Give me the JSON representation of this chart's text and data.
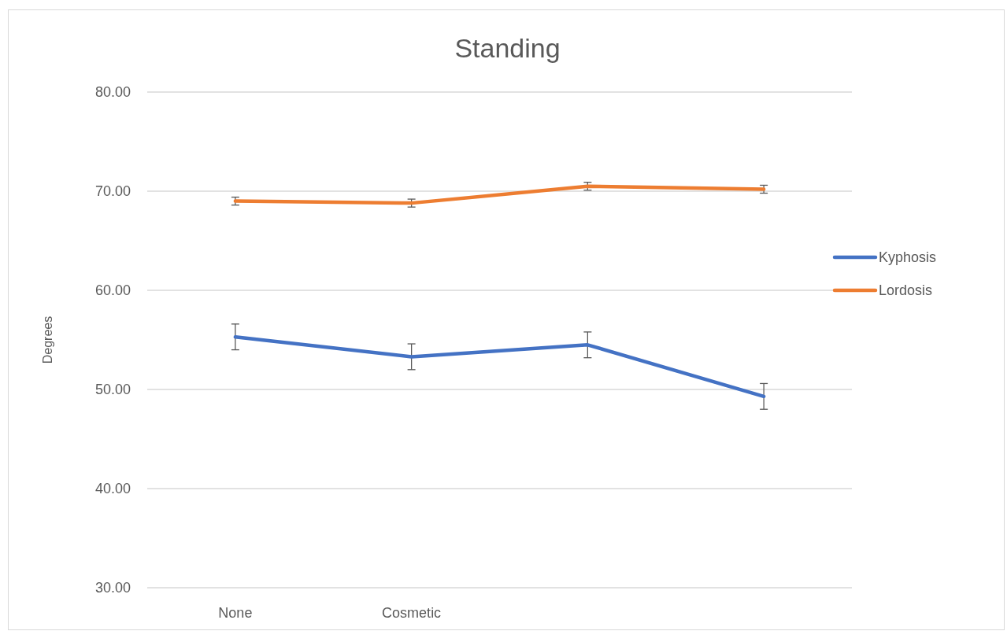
{
  "chart_data": {
    "type": "line",
    "title": "Standing",
    "ylabel": "Degrees",
    "categories": [
      "None",
      "Cosmetic",
      null,
      null
    ],
    "series": [
      {
        "name": "Kyphosis",
        "color": "#4472c4",
        "values": [
          55.3,
          53.3,
          54.5,
          49.3
        ],
        "errors": [
          1.3,
          1.3,
          1.3,
          1.3
        ]
      },
      {
        "name": "Lordosis",
        "color": "#ed7d31",
        "values": [
          69.0,
          68.8,
          70.5,
          70.2
        ],
        "errors": [
          0.4,
          0.4,
          0.4,
          0.4
        ]
      }
    ],
    "ylim": [
      30,
      80
    ],
    "yticks": [
      {
        "value": 30,
        "label": "30.00"
      },
      {
        "value": 40,
        "label": "40.00"
      },
      {
        "value": 50,
        "label": "50.00"
      },
      {
        "value": 60,
        "label": "60.00"
      },
      {
        "value": 70,
        "label": "70.00"
      },
      {
        "value": 80,
        "label": "80.00"
      }
    ],
    "grid": "y",
    "legend": "right",
    "marker": "none",
    "line_style": "solid"
  }
}
